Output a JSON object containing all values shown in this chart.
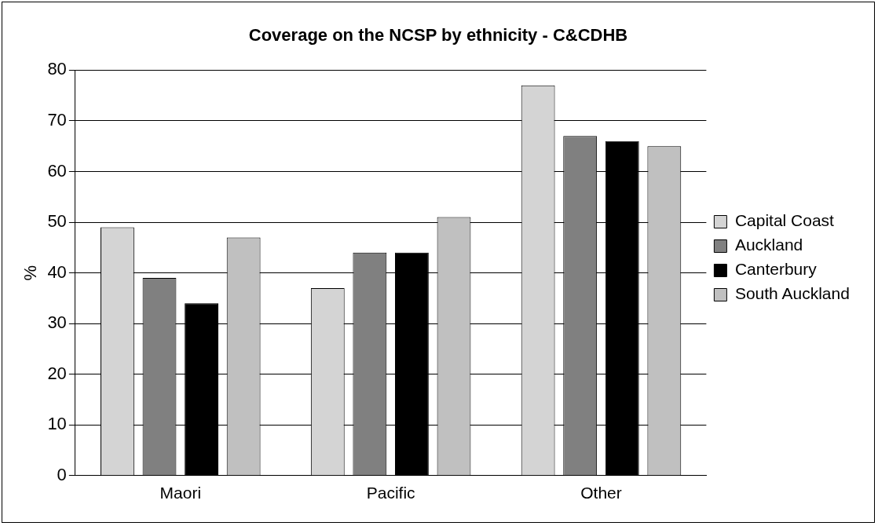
{
  "chart_data": {
    "type": "bar",
    "title": "Coverage on the NCSP by ethnicity - C&CDHB",
    "ylabel": "%",
    "categories": [
      "Maori",
      "Pacific",
      "Other"
    ],
    "series": [
      {
        "name": "Capital Coast",
        "color": "#d4d4d4",
        "values": [
          49,
          37,
          77
        ]
      },
      {
        "name": "Auckland",
        "color": "#808080",
        "values": [
          39,
          44,
          67
        ]
      },
      {
        "name": "Canterbury",
        "color": "#000000",
        "values": [
          34,
          44,
          66
        ]
      },
      {
        "name": "South Auckland",
        "color": "#c0c0c0",
        "values": [
          47,
          51,
          65
        ]
      }
    ],
    "ylim": [
      0,
      80
    ],
    "yticks": [
      0,
      10,
      20,
      30,
      40,
      50,
      60,
      70,
      80
    ],
    "grid": "y",
    "legend": "right"
  }
}
